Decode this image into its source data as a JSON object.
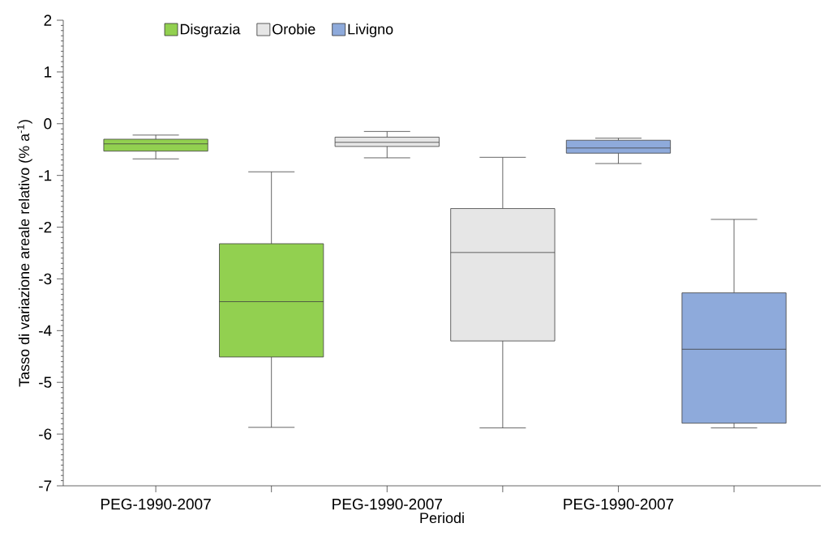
{
  "chart_data": {
    "type": "box",
    "xlabel": "Periodi",
    "ylabel": "Tasso di variazione areale relativo (% a$^{-1}$)",
    "categories": [
      "PEG-1990-2007",
      null,
      "PEG-1990-2007",
      null,
      "PEG-1990-2007",
      null
    ],
    "ylim": [
      -7,
      2
    ],
    "yticks": [
      -7,
      -6,
      -5,
      -4,
      -3,
      -2,
      -1,
      0,
      1,
      2
    ],
    "legend": "top",
    "series": [
      {
        "name": "Disgrazia",
        "color": "#92d050",
        "boxes": [
          {
            "low": -0.68,
            "q1": -0.53,
            "median": -0.39,
            "q3": -0.3,
            "high": -0.22
          },
          {
            "low": -5.87,
            "q1": -4.51,
            "median": -3.44,
            "q3": -2.32,
            "high": -0.93
          },
          null,
          null,
          null,
          null
        ]
      },
      {
        "name": "Orobie",
        "color": "#e6e6e6",
        "boxes": [
          null,
          null,
          {
            "low": -0.66,
            "q1": -0.44,
            "median": -0.36,
            "q3": -0.26,
            "high": -0.15
          },
          {
            "low": -5.88,
            "q1": -4.2,
            "median": -2.49,
            "q3": -1.64,
            "high": -0.65
          },
          null,
          null
        ]
      },
      {
        "name": "Livigno",
        "color": "#8eaadb",
        "boxes": [
          null,
          null,
          null,
          null,
          {
            "low": -0.77,
            "q1": -0.57,
            "median": -0.47,
            "q3": -0.32,
            "high": -0.28
          },
          {
            "low": -5.88,
            "q1": -5.79,
            "median": -4.36,
            "q3": -3.27,
            "high": -1.85
          }
        ]
      }
    ]
  }
}
